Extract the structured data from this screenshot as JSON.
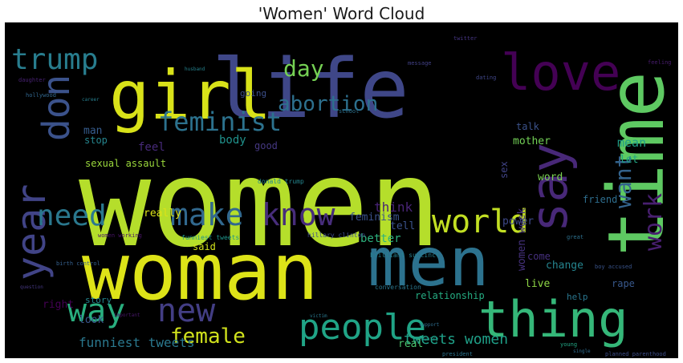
{
  "chart_data": {
    "type": "wordcloud",
    "title": "'Women' Word Cloud",
    "background": "#000000",
    "words": [
      {
        "text": "women",
        "color": "#b5de2b"
      },
      {
        "text": "woman",
        "color": "#dde318"
      },
      {
        "text": "life",
        "color": "#3f4788"
      },
      {
        "text": "girl",
        "color": "#d8e219"
      },
      {
        "text": "time",
        "color": "#5ec962"
      },
      {
        "text": "men",
        "color": "#2c728e"
      },
      {
        "text": "thing",
        "color": "#35b779"
      },
      {
        "text": "love",
        "color": "#440154"
      },
      {
        "text": "say",
        "color": "#482878"
      },
      {
        "text": "don",
        "color": "#3b528b"
      },
      {
        "text": "year",
        "color": "#414487"
      },
      {
        "text": "trump",
        "color": "#287d8e"
      },
      {
        "text": "people",
        "color": "#20a486"
      },
      {
        "text": "world",
        "color": "#c2df23"
      },
      {
        "text": "make",
        "color": "#31688e"
      },
      {
        "text": "know",
        "color": "#472d7b"
      },
      {
        "text": "need",
        "color": "#2a788e"
      },
      {
        "text": "feminist",
        "color": "#2c728e"
      },
      {
        "text": "way",
        "color": "#29af7f"
      },
      {
        "text": "new",
        "color": "#433e85"
      },
      {
        "text": "work",
        "color": "#481f70"
      },
      {
        "text": "want",
        "color": "#33638d"
      },
      {
        "text": "day",
        "color": "#75d054"
      },
      {
        "text": "abortion",
        "color": "#2d708e"
      },
      {
        "text": "female",
        "color": "#d0e11c"
      },
      {
        "text": "tweets women",
        "color": "#1fa088"
      },
      {
        "text": "funniest tweets",
        "color": "#2a788e"
      },
      {
        "text": "sexual assault",
        "color": "#9bd93c"
      },
      {
        "text": "feminism",
        "color": "#3b528b"
      },
      {
        "text": "think",
        "color": "#482475"
      },
      {
        "text": "better",
        "color": "#2db27d"
      },
      {
        "text": "tell",
        "color": "#3b528b"
      },
      {
        "text": "look",
        "color": "#39568c"
      },
      {
        "text": "story",
        "color": "#24868e"
      },
      {
        "text": "right",
        "color": "#440154"
      },
      {
        "text": "really",
        "color": "#dde318"
      },
      {
        "text": "feel",
        "color": "#472a7a"
      },
      {
        "text": "stop",
        "color": "#25858e"
      },
      {
        "text": "man",
        "color": "#365c8d"
      },
      {
        "text": "body",
        "color": "#20928c"
      },
      {
        "text": "mother",
        "color": "#73d056"
      },
      {
        "text": "talk",
        "color": "#3b528b"
      },
      {
        "text": "good",
        "color": "#453882"
      },
      {
        "text": "mean",
        "color": "#1f9e89"
      },
      {
        "text": "let",
        "color": "#22a884"
      },
      {
        "text": "sex",
        "color": "#414487"
      },
      {
        "text": "word",
        "color": "#7ad151"
      },
      {
        "text": "women week",
        "color": "#46327e"
      },
      {
        "text": "friend",
        "color": "#2e6e8e"
      },
      {
        "text": "power",
        "color": "#3e4989"
      },
      {
        "text": "said",
        "color": "#d2e21b"
      },
      {
        "text": "change",
        "color": "#25848e"
      },
      {
        "text": "live",
        "color": "#8ed645"
      },
      {
        "text": "come",
        "color": "#46307e"
      },
      {
        "text": "help",
        "color": "#2a768e"
      },
      {
        "text": "rape",
        "color": "#38588c"
      },
      {
        "text": "relationship",
        "color": "#25ac82"
      },
      {
        "text": "real",
        "color": "#4ac16d"
      },
      {
        "text": "going",
        "color": "#3c4f8a"
      },
      {
        "text": "donald trump",
        "color": "#24868e"
      },
      {
        "text": "hillary clinton",
        "color": "#3e4c8a"
      },
      {
        "text": "funniest tweets",
        "color": "#1f968b"
      },
      {
        "text": "conversation",
        "color": "#2a778e"
      },
      {
        "text": "women working",
        "color": "#481467"
      },
      {
        "text": "birth control",
        "color": "#35608d"
      },
      {
        "text": "planned parenthood",
        "color": "#3d4e8a"
      },
      {
        "text": "president",
        "color": "#2b748e"
      },
      {
        "text": "brilliant succinct",
        "color": "#27808e"
      },
      {
        "text": "boy accused",
        "color": "#3a548c"
      },
      {
        "text": "daughter",
        "color": "#482173"
      },
      {
        "text": "hollywood",
        "color": "#31668e"
      },
      {
        "text": "career",
        "color": "#277f8e"
      },
      {
        "text": "school",
        "color": "#2c718e"
      },
      {
        "text": "message",
        "color": "#424086"
      },
      {
        "text": "feeling",
        "color": "#481c6e"
      },
      {
        "text": "dating",
        "color": "#404688"
      },
      {
        "text": "husband",
        "color": "#25838e"
      },
      {
        "text": "support",
        "color": "#2e6d8e"
      },
      {
        "text": "twitter",
        "color": "#453581"
      },
      {
        "text": "young",
        "color": "#22a785"
      },
      {
        "text": "great",
        "color": "#2d718e"
      },
      {
        "text": "country",
        "color": "#1f9a8a"
      },
      {
        "text": "question",
        "color": "#453781"
      },
      {
        "text": "important",
        "color": "#48186a"
      },
      {
        "text": "victim",
        "color": "#2a788e"
      },
      {
        "text": "single",
        "color": "#2f6c8e"
      }
    ]
  }
}
